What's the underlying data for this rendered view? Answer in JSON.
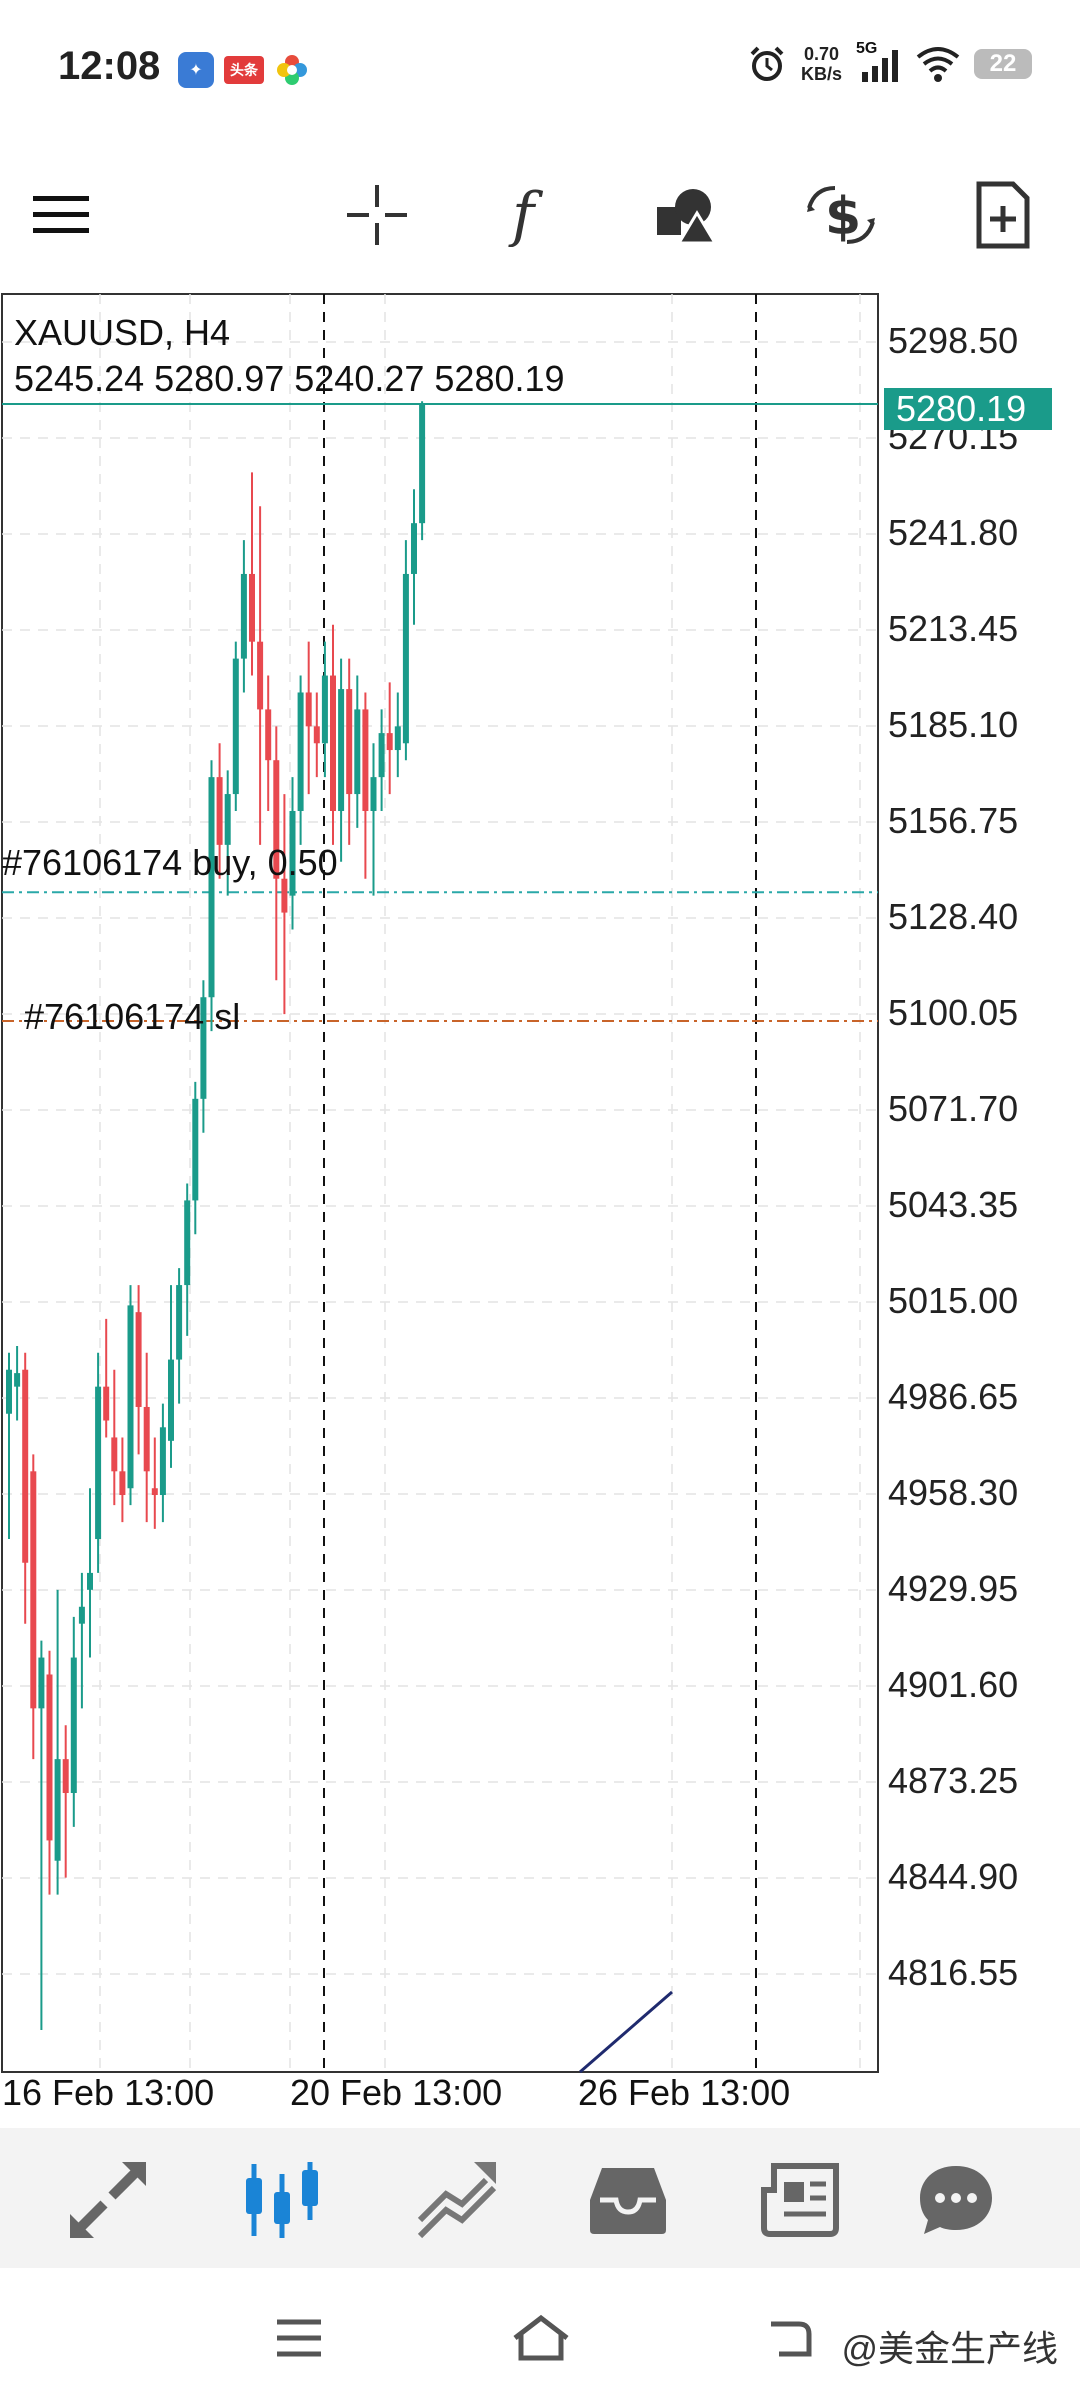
{
  "status": {
    "time": "12:08",
    "net_speed_value": "0.70",
    "net_speed_unit": "KB/s",
    "network": "5G",
    "battery": "22",
    "app_icon_red_text": "头条"
  },
  "toolbar": {
    "icons": [
      "menu-icon",
      "crosshair-icon",
      "indicators-icon",
      "objects-icon",
      "trade-icon",
      "new-order-icon"
    ]
  },
  "chart": {
    "symbol": "XAUUSD, H4",
    "ohlc": "5245.24 5280.97 5240.27 5280.19",
    "current_price": "5280.19",
    "price_axis": [
      "5298.50",
      "5270.15",
      "5241.80",
      "5213.45",
      "5185.10",
      "5156.75",
      "5128.40",
      "5100.05",
      "5071.70",
      "5043.35",
      "5015.00",
      "4986.65",
      "4958.30",
      "4929.95",
      "4901.60",
      "4873.25",
      "4844.90",
      "4816.55"
    ],
    "date_labels": [
      "16 Feb 13:00",
      "20 Feb 13:00",
      "26 Feb 13:00"
    ],
    "buy_line_label": "#76106174 buy, 0.50",
    "sl_line_label": "#76106174 sl",
    "buy_price": 5136,
    "sl_price": 5098,
    "colors": {
      "bull": "#1a9b8a",
      "bear": "#e8494f",
      "buy_line": "#2aa8a8",
      "sl_line": "#c8642a",
      "indicator": "#1f2a6e"
    }
  },
  "bottom_nav": {
    "items": [
      "quotes-icon",
      "chart-icon",
      "trade-icon",
      "history-icon",
      "news-icon",
      "messages-icon"
    ],
    "active": "chart-icon"
  },
  "system_nav": {
    "watermark": "@美金生产线"
  }
}
